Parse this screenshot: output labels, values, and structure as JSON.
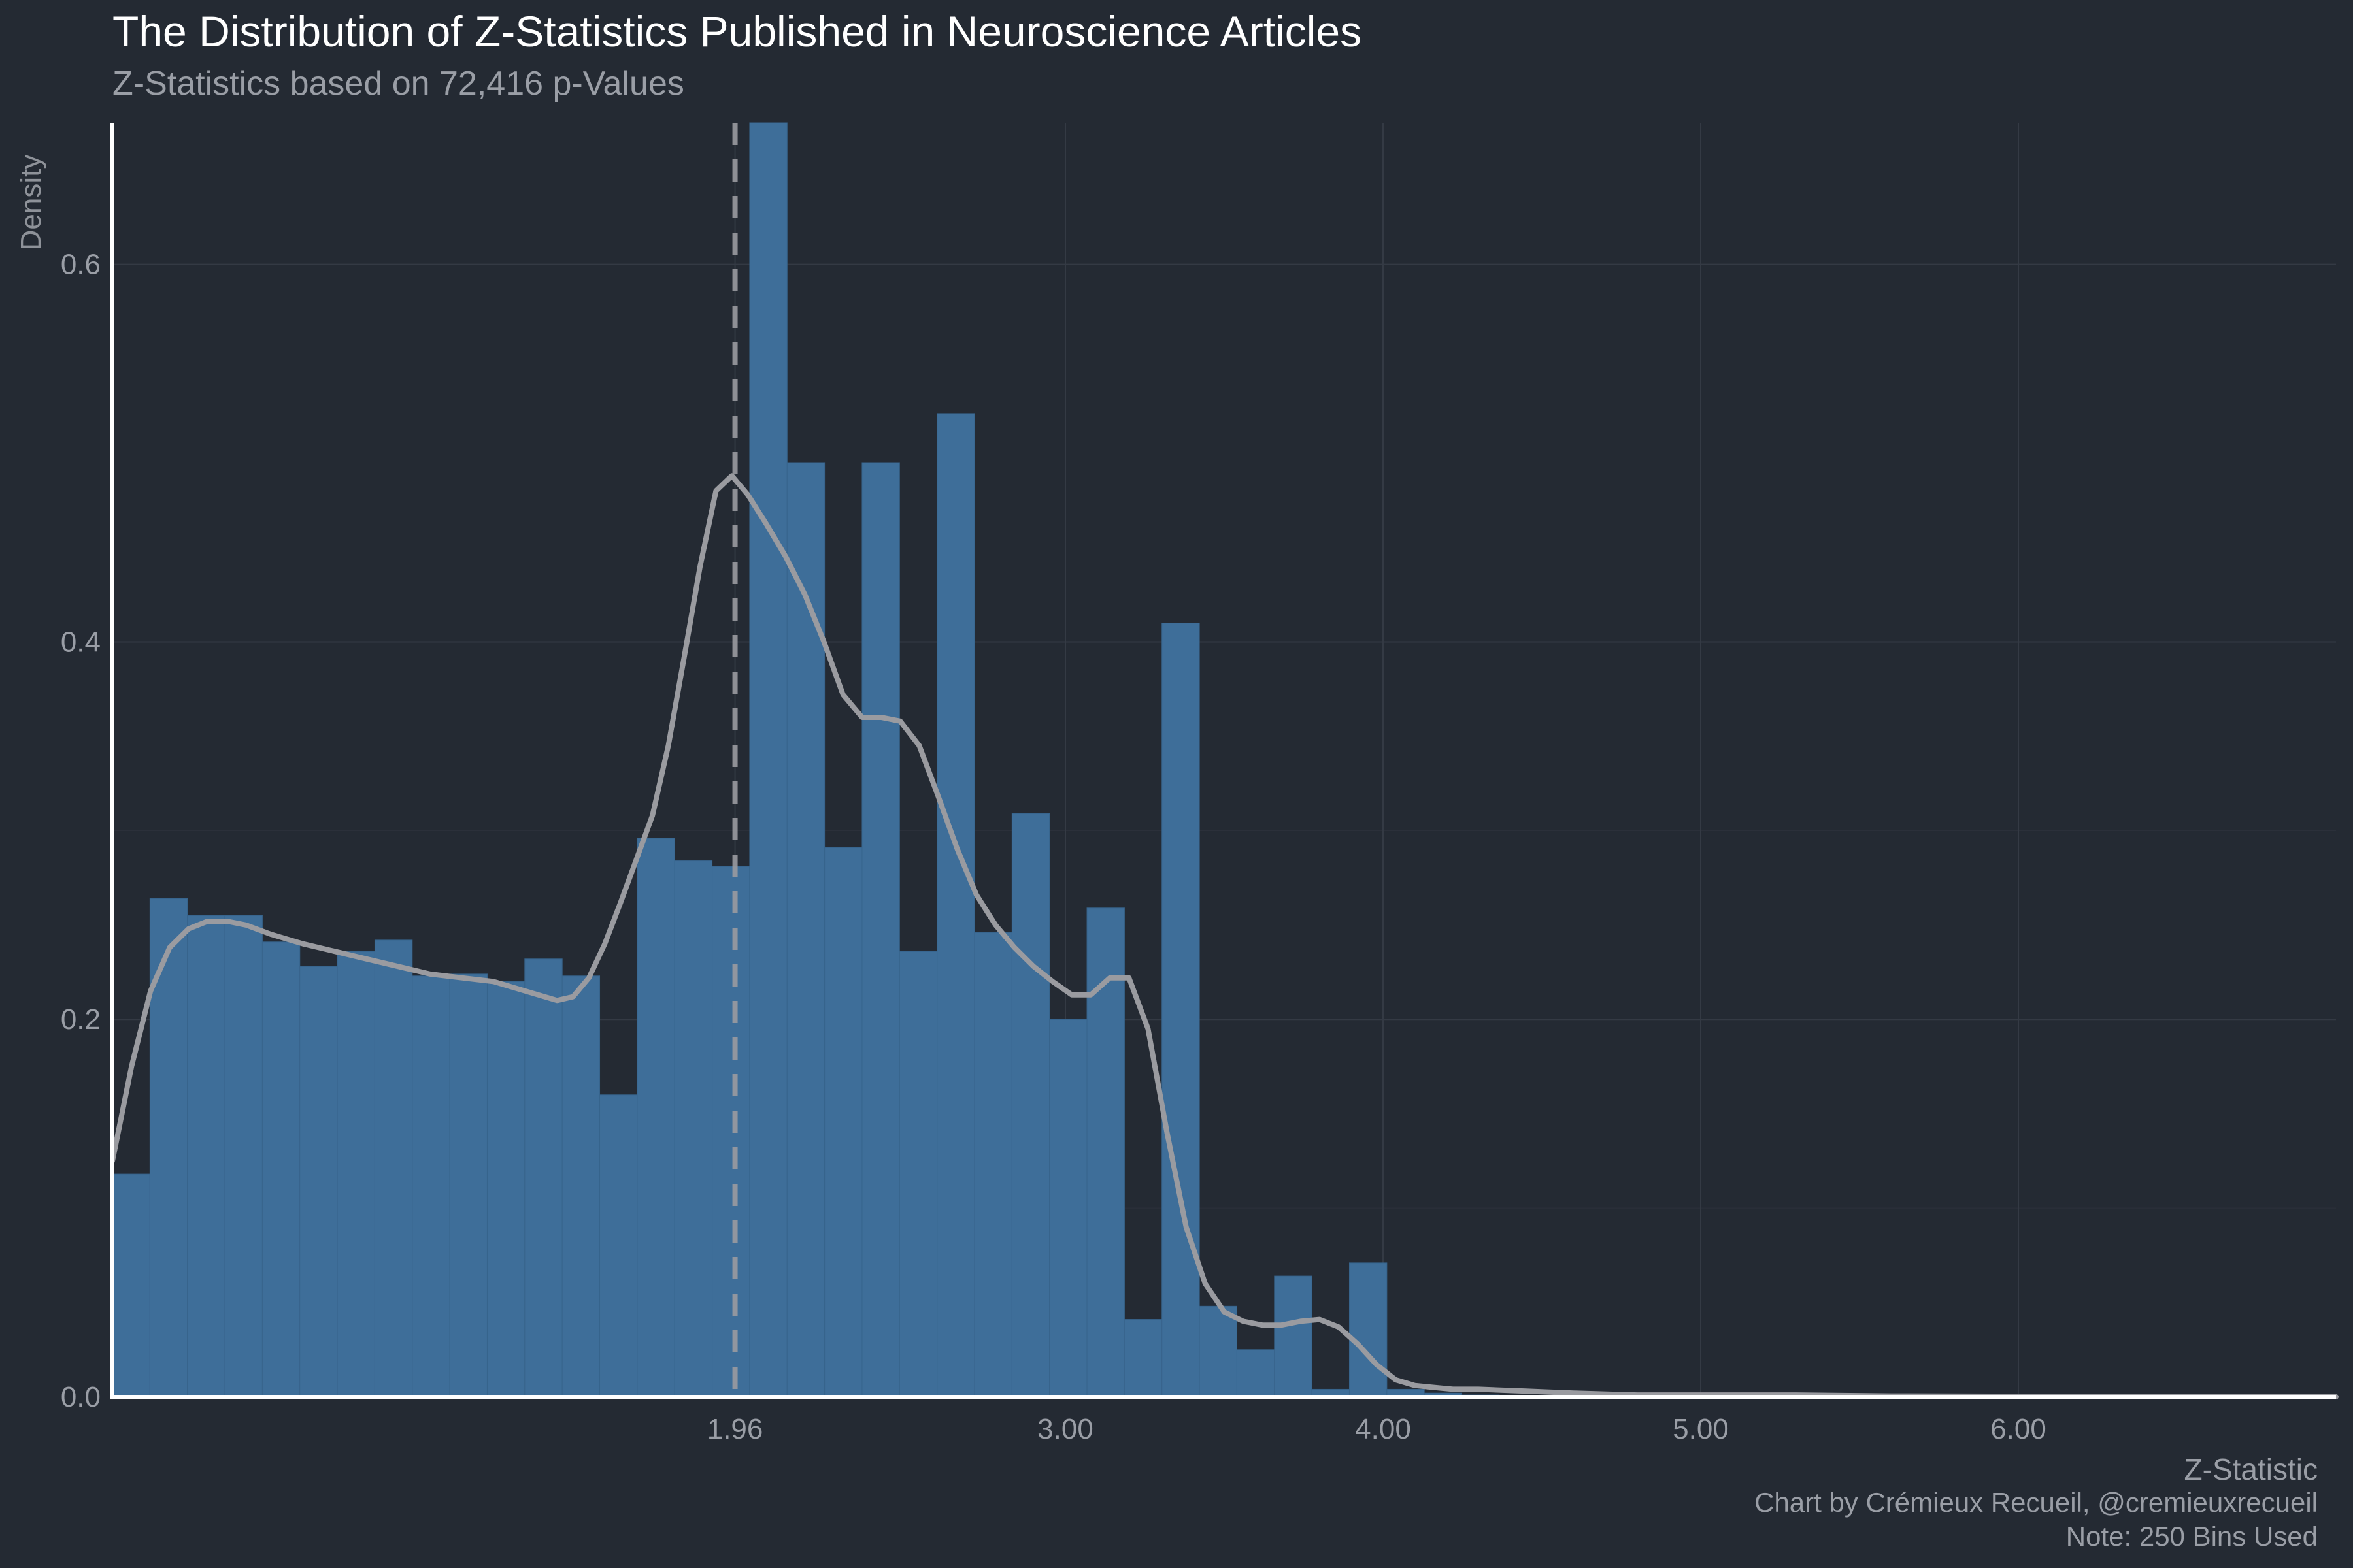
{
  "title": "The Distribution of Z-Statistics Published in Neuroscience Articles",
  "subtitle": "Z-Statistics based on 72,416 p-Values",
  "captions": [
    "Chart by Crémieux Recueil, @cremieuxrecueil",
    "Note: 250 Bins Used"
  ],
  "colors": {
    "background": "#242a33",
    "bars": "#3e6e99",
    "density": "#9a9ba0",
    "grid": "#343a44",
    "axis": "#ffffff",
    "reference": "#9a9ba0"
  },
  "chart_data": {
    "type": "bar",
    "title": "The Distribution of Z-Statistics Published in Neuroscience Articles",
    "subtitle": "Z-Statistics based on 72,416 p-Values",
    "xlabel": "Z-Statistic",
    "ylabel": "Density",
    "xlim": [
      0.0,
      7.0
    ],
    "ylim": [
      0.0,
      0.675
    ],
    "x_ticks": [
      1.96,
      3.0,
      4.0,
      5.0,
      6.0
    ],
    "x_tick_labels": [
      "1.96",
      "3.00",
      "4.00",
      "5.00",
      "6.00"
    ],
    "y_ticks": [
      0.0,
      0.2,
      0.4,
      0.6
    ],
    "y_tick_labels": [
      "0.0",
      "0.2",
      "0.4",
      "0.6"
    ],
    "grid": true,
    "reference_line": {
      "x": 1.96,
      "style": "dashed"
    },
    "bin_width": 0.118,
    "series": [
      {
        "type": "bar",
        "bin_starts": [
          0.0,
          0.118,
          0.236,
          0.354,
          0.472,
          0.59,
          0.708,
          0.826,
          0.944,
          1.062,
          1.18,
          1.298,
          1.416,
          1.534,
          1.652,
          1.77,
          1.888,
          2.006,
          2.124,
          2.242,
          2.36,
          2.478,
          2.596,
          2.714,
          2.832,
          2.95,
          3.068,
          3.186,
          3.304,
          3.422,
          3.54,
          3.658,
          3.776,
          3.894,
          4.012,
          4.13,
          4.248
        ],
        "values": [
          0.118,
          0.264,
          0.255,
          0.255,
          0.241,
          0.228,
          0.236,
          0.242,
          0.223,
          0.224,
          0.22,
          0.232,
          0.223,
          0.16,
          0.296,
          0.284,
          0.281,
          0.675,
          0.495,
          0.291,
          0.495,
          0.236,
          0.521,
          0.246,
          0.309,
          0.2,
          0.259,
          0.041,
          0.41,
          0.048,
          0.025,
          0.064,
          0.004,
          0.071,
          0.004,
          0.002,
          0.001
        ]
      },
      {
        "type": "line",
        "x": [
          0.0,
          0.06,
          0.12,
          0.18,
          0.24,
          0.3,
          0.36,
          0.42,
          0.5,
          0.6,
          0.7,
          0.8,
          0.9,
          1.0,
          1.1,
          1.2,
          1.3,
          1.4,
          1.45,
          1.5,
          1.55,
          1.6,
          1.65,
          1.7,
          1.75,
          1.8,
          1.85,
          1.9,
          1.95,
          2.0,
          2.06,
          2.12,
          2.18,
          2.24,
          2.3,
          2.36,
          2.42,
          2.48,
          2.54,
          2.6,
          2.66,
          2.72,
          2.78,
          2.84,
          2.9,
          2.96,
          3.02,
          3.08,
          3.14,
          3.2,
          3.26,
          3.32,
          3.38,
          3.44,
          3.5,
          3.56,
          3.62,
          3.68,
          3.74,
          3.8,
          3.86,
          3.92,
          3.98,
          4.04,
          4.1,
          4.16,
          4.22,
          4.3,
          4.45,
          4.6,
          4.8,
          5.0,
          5.3,
          5.6,
          6.0,
          6.4,
          7.0
        ],
        "values": [
          0.125,
          0.175,
          0.215,
          0.238,
          0.248,
          0.252,
          0.252,
          0.25,
          0.245,
          0.24,
          0.236,
          0.232,
          0.228,
          0.224,
          0.222,
          0.22,
          0.215,
          0.21,
          0.212,
          0.222,
          0.24,
          0.262,
          0.285,
          0.308,
          0.345,
          0.392,
          0.44,
          0.48,
          0.488,
          0.478,
          0.462,
          0.445,
          0.425,
          0.4,
          0.372,
          0.36,
          0.36,
          0.358,
          0.345,
          0.318,
          0.29,
          0.266,
          0.25,
          0.238,
          0.228,
          0.22,
          0.213,
          0.213,
          0.222,
          0.222,
          0.195,
          0.14,
          0.09,
          0.06,
          0.045,
          0.04,
          0.038,
          0.038,
          0.04,
          0.041,
          0.037,
          0.028,
          0.017,
          0.009,
          0.006,
          0.005,
          0.004,
          0.004,
          0.003,
          0.002,
          0.001,
          0.001,
          0.001,
          0.0005,
          0.0003,
          0.0001,
          0.0
        ]
      }
    ]
  }
}
